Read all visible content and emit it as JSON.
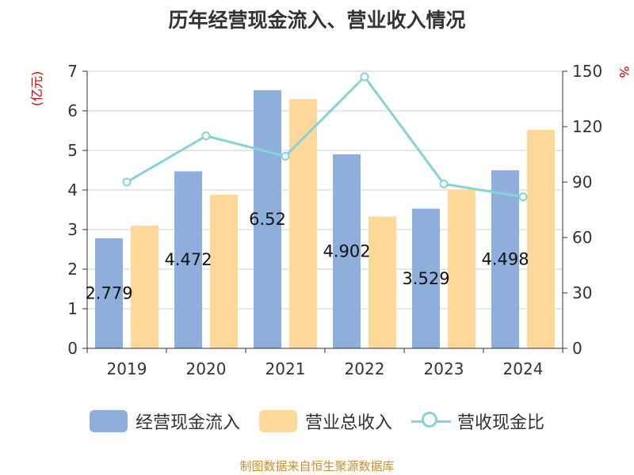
{
  "chart_data": {
    "type": "bar",
    "title": "历年经营现金流入、营业收入情况",
    "categories": [
      "2019",
      "2020",
      "2021",
      "2022",
      "2023",
      "2024"
    ],
    "y_left": {
      "label": "(亿元)",
      "min": 0,
      "max": 7,
      "ticks": [
        0,
        1,
        2,
        3,
        4,
        5,
        6,
        7
      ]
    },
    "y_right": {
      "label": "%",
      "min": 0,
      "max": 150,
      "ticks": [
        0,
        30,
        60,
        90,
        120,
        150
      ]
    },
    "series": [
      {
        "name": "经营现金流入",
        "type": "bar",
        "axis": "left",
        "color": "#8eaedb",
        "values": [
          2.779,
          4.472,
          6.52,
          4.902,
          3.529,
          4.498
        ],
        "labels": [
          "2.779",
          "4.472",
          "6.52",
          "4.902",
          "3.529",
          "4.498"
        ]
      },
      {
        "name": "营业总收入",
        "type": "bar",
        "axis": "left",
        "color": "#fed899",
        "values": [
          3.1,
          3.88,
          6.3,
          3.33,
          4.0,
          5.52
        ]
      },
      {
        "name": "营收现金比",
        "type": "line",
        "axis": "right",
        "color": "#86d3d6",
        "values": [
          90,
          115,
          104,
          147,
          89,
          82
        ]
      }
    ],
    "grid": true,
    "legend_position": "bottom"
  },
  "source": "制图数据来自恒生聚源数据库"
}
